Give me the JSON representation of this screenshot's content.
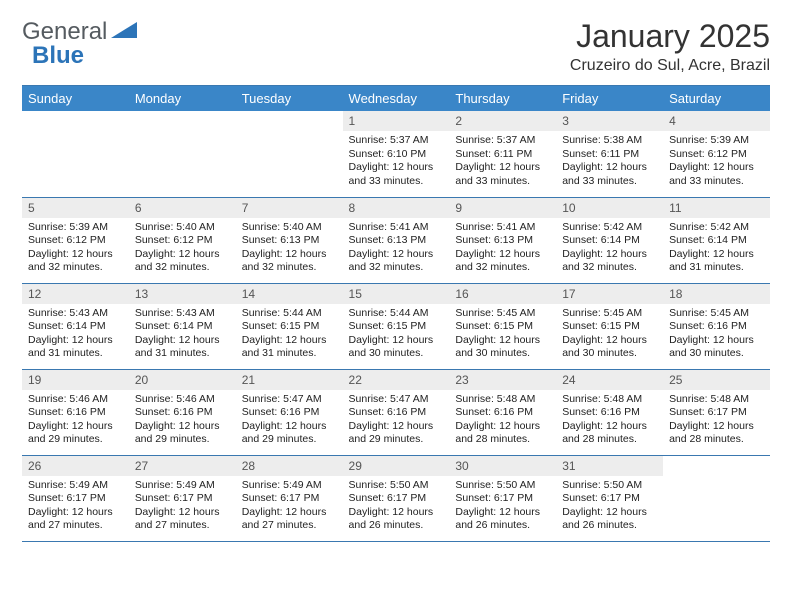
{
  "brand": {
    "general": "General",
    "blue": "Blue"
  },
  "title": "January 2025",
  "location": "Cruzeiro do Sul, Acre, Brazil",
  "colors": {
    "header_bg": "#3a86c8",
    "header_text": "#ffffff",
    "daynum_bg": "#ededed",
    "border": "#3a78b0",
    "brand_gray": "#555b60",
    "brand_blue": "#2c74b8"
  },
  "weekdays": [
    "Sunday",
    "Monday",
    "Tuesday",
    "Wednesday",
    "Thursday",
    "Friday",
    "Saturday"
  ],
  "weeks": [
    [
      {
        "empty": true
      },
      {
        "empty": true
      },
      {
        "empty": true
      },
      {
        "num": "1",
        "sunrise": "5:37 AM",
        "sunset": "6:10 PM",
        "daylight": "12 hours and 33 minutes."
      },
      {
        "num": "2",
        "sunrise": "5:37 AM",
        "sunset": "6:11 PM",
        "daylight": "12 hours and 33 minutes."
      },
      {
        "num": "3",
        "sunrise": "5:38 AM",
        "sunset": "6:11 PM",
        "daylight": "12 hours and 33 minutes."
      },
      {
        "num": "4",
        "sunrise": "5:39 AM",
        "sunset": "6:12 PM",
        "daylight": "12 hours and 33 minutes."
      }
    ],
    [
      {
        "num": "5",
        "sunrise": "5:39 AM",
        "sunset": "6:12 PM",
        "daylight": "12 hours and 32 minutes."
      },
      {
        "num": "6",
        "sunrise": "5:40 AM",
        "sunset": "6:12 PM",
        "daylight": "12 hours and 32 minutes."
      },
      {
        "num": "7",
        "sunrise": "5:40 AM",
        "sunset": "6:13 PM",
        "daylight": "12 hours and 32 minutes."
      },
      {
        "num": "8",
        "sunrise": "5:41 AM",
        "sunset": "6:13 PM",
        "daylight": "12 hours and 32 minutes."
      },
      {
        "num": "9",
        "sunrise": "5:41 AM",
        "sunset": "6:13 PM",
        "daylight": "12 hours and 32 minutes."
      },
      {
        "num": "10",
        "sunrise": "5:42 AM",
        "sunset": "6:14 PM",
        "daylight": "12 hours and 32 minutes."
      },
      {
        "num": "11",
        "sunrise": "5:42 AM",
        "sunset": "6:14 PM",
        "daylight": "12 hours and 31 minutes."
      }
    ],
    [
      {
        "num": "12",
        "sunrise": "5:43 AM",
        "sunset": "6:14 PM",
        "daylight": "12 hours and 31 minutes."
      },
      {
        "num": "13",
        "sunrise": "5:43 AM",
        "sunset": "6:14 PM",
        "daylight": "12 hours and 31 minutes."
      },
      {
        "num": "14",
        "sunrise": "5:44 AM",
        "sunset": "6:15 PM",
        "daylight": "12 hours and 31 minutes."
      },
      {
        "num": "15",
        "sunrise": "5:44 AM",
        "sunset": "6:15 PM",
        "daylight": "12 hours and 30 minutes."
      },
      {
        "num": "16",
        "sunrise": "5:45 AM",
        "sunset": "6:15 PM",
        "daylight": "12 hours and 30 minutes."
      },
      {
        "num": "17",
        "sunrise": "5:45 AM",
        "sunset": "6:15 PM",
        "daylight": "12 hours and 30 minutes."
      },
      {
        "num": "18",
        "sunrise": "5:45 AM",
        "sunset": "6:16 PM",
        "daylight": "12 hours and 30 minutes."
      }
    ],
    [
      {
        "num": "19",
        "sunrise": "5:46 AM",
        "sunset": "6:16 PM",
        "daylight": "12 hours and 29 minutes."
      },
      {
        "num": "20",
        "sunrise": "5:46 AM",
        "sunset": "6:16 PM",
        "daylight": "12 hours and 29 minutes."
      },
      {
        "num": "21",
        "sunrise": "5:47 AM",
        "sunset": "6:16 PM",
        "daylight": "12 hours and 29 minutes."
      },
      {
        "num": "22",
        "sunrise": "5:47 AM",
        "sunset": "6:16 PM",
        "daylight": "12 hours and 29 minutes."
      },
      {
        "num": "23",
        "sunrise": "5:48 AM",
        "sunset": "6:16 PM",
        "daylight": "12 hours and 28 minutes."
      },
      {
        "num": "24",
        "sunrise": "5:48 AM",
        "sunset": "6:16 PM",
        "daylight": "12 hours and 28 minutes."
      },
      {
        "num": "25",
        "sunrise": "5:48 AM",
        "sunset": "6:17 PM",
        "daylight": "12 hours and 28 minutes."
      }
    ],
    [
      {
        "num": "26",
        "sunrise": "5:49 AM",
        "sunset": "6:17 PM",
        "daylight": "12 hours and 27 minutes."
      },
      {
        "num": "27",
        "sunrise": "5:49 AM",
        "sunset": "6:17 PM",
        "daylight": "12 hours and 27 minutes."
      },
      {
        "num": "28",
        "sunrise": "5:49 AM",
        "sunset": "6:17 PM",
        "daylight": "12 hours and 27 minutes."
      },
      {
        "num": "29",
        "sunrise": "5:50 AM",
        "sunset": "6:17 PM",
        "daylight": "12 hours and 26 minutes."
      },
      {
        "num": "30",
        "sunrise": "5:50 AM",
        "sunset": "6:17 PM",
        "daylight": "12 hours and 26 minutes."
      },
      {
        "num": "31",
        "sunrise": "5:50 AM",
        "sunset": "6:17 PM",
        "daylight": "12 hours and 26 minutes."
      },
      {
        "empty": true
      }
    ]
  ]
}
